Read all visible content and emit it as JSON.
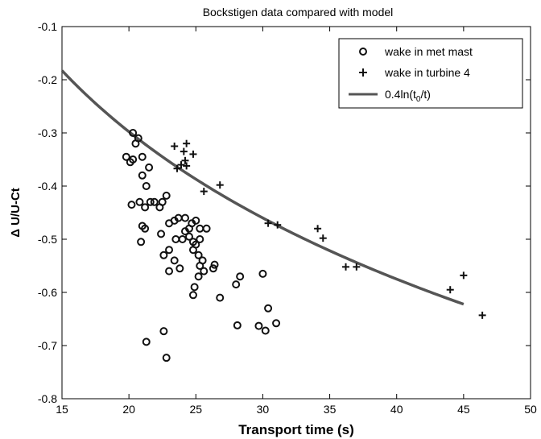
{
  "chart_data": {
    "type": "scatter",
    "title": "Bockstigen data compared with model",
    "xlabel": "Transport time (s)",
    "ylabel": "Δ U/U-Ct",
    "xlim": [
      15,
      50
    ],
    "ylim": [
      -0.8,
      -0.1
    ],
    "xticks": [
      "15",
      "20",
      "25",
      "30",
      "35",
      "40",
      "45",
      "50"
    ],
    "yticks": [
      "-0.1",
      "-0.2",
      "-0.3",
      "-0.4",
      "-0.5",
      "-0.6",
      "-0.7",
      "-0.8"
    ],
    "grid": false,
    "legend_position": "top-right",
    "legend": [
      "wake in met mast",
      "wake in turbine 4",
      "0.4ln(t0/t)"
    ],
    "colors": {
      "markers": "#111111",
      "curve": "#555555"
    },
    "series": [
      {
        "name": "wake in met mast",
        "marker": "circle",
        "points": [
          [
            19.8,
            -0.345
          ],
          [
            20.3,
            -0.3
          ],
          [
            20.7,
            -0.31
          ],
          [
            20.5,
            -0.32
          ],
          [
            20.3,
            -0.35
          ],
          [
            20.1,
            -0.355
          ],
          [
            21.0,
            -0.345
          ],
          [
            21.0,
            -0.38
          ],
          [
            21.5,
            -0.365
          ],
          [
            21.3,
            -0.4
          ],
          [
            21.6,
            -0.43
          ],
          [
            21.9,
            -0.43
          ],
          [
            21.2,
            -0.44
          ],
          [
            22.3,
            -0.44
          ],
          [
            22.8,
            -0.418
          ],
          [
            22.5,
            -0.43
          ],
          [
            20.2,
            -0.435
          ],
          [
            20.8,
            -0.43
          ],
          [
            21.2,
            -0.48
          ],
          [
            21.0,
            -0.475
          ],
          [
            20.9,
            -0.505
          ],
          [
            22.4,
            -0.49
          ],
          [
            23.0,
            -0.47
          ],
          [
            23.4,
            -0.465
          ],
          [
            23.7,
            -0.46
          ],
          [
            24.2,
            -0.46
          ],
          [
            24.7,
            -0.47
          ],
          [
            25.0,
            -0.465
          ],
          [
            24.5,
            -0.48
          ],
          [
            25.3,
            -0.48
          ],
          [
            25.8,
            -0.48
          ],
          [
            24.2,
            -0.485
          ],
          [
            24.5,
            -0.495
          ],
          [
            24.8,
            -0.505
          ],
          [
            25.0,
            -0.51
          ],
          [
            25.3,
            -0.5
          ],
          [
            24.0,
            -0.5
          ],
          [
            23.5,
            -0.5
          ],
          [
            22.6,
            -0.53
          ],
          [
            23.0,
            -0.52
          ],
          [
            23.4,
            -0.54
          ],
          [
            24.8,
            -0.52
          ],
          [
            25.2,
            -0.53
          ],
          [
            25.5,
            -0.54
          ],
          [
            25.3,
            -0.55
          ],
          [
            25.6,
            -0.56
          ],
          [
            26.3,
            -0.555
          ],
          [
            26.4,
            -0.548
          ],
          [
            23.0,
            -0.56
          ],
          [
            23.8,
            -0.555
          ],
          [
            24.9,
            -0.59
          ],
          [
            24.8,
            -0.605
          ],
          [
            25.2,
            -0.57
          ],
          [
            26.8,
            -0.61
          ],
          [
            28.3,
            -0.57
          ],
          [
            28.0,
            -0.585
          ],
          [
            30.0,
            -0.565
          ],
          [
            30.4,
            -0.63
          ],
          [
            30.2,
            -0.672
          ],
          [
            31.0,
            -0.658
          ],
          [
            29.7,
            -0.663
          ],
          [
            28.1,
            -0.662
          ],
          [
            21.3,
            -0.693
          ],
          [
            22.6,
            -0.673
          ],
          [
            22.8,
            -0.723
          ]
        ]
      },
      {
        "name": "wake in turbine 4",
        "marker": "plus",
        "points": [
          [
            23.4,
            -0.325
          ],
          [
            24.3,
            -0.32
          ],
          [
            24.1,
            -0.335
          ],
          [
            24.8,
            -0.34
          ],
          [
            24.2,
            -0.352
          ],
          [
            23.9,
            -0.36
          ],
          [
            24.3,
            -0.362
          ],
          [
            23.6,
            -0.367
          ],
          [
            25.6,
            -0.41
          ],
          [
            26.8,
            -0.398
          ],
          [
            30.4,
            -0.47
          ],
          [
            31.1,
            -0.473
          ],
          [
            34.1,
            -0.48
          ],
          [
            34.5,
            -0.498
          ],
          [
            36.2,
            -0.552
          ],
          [
            37.0,
            -0.552
          ],
          [
            44.0,
            -0.595
          ],
          [
            45.0,
            -0.568
          ],
          [
            46.4,
            -0.643
          ]
        ]
      },
      {
        "name": "0.4ln(t0/t)",
        "type": "line",
        "function": "0.4*ln(t0/t)",
        "t0": 9.5,
        "x_range": [
          15,
          45
        ]
      }
    ]
  }
}
